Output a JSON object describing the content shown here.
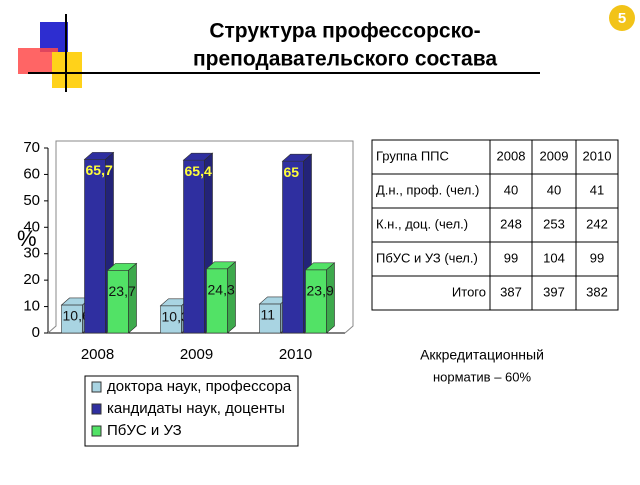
{
  "slide_number": "5",
  "title_lines": [
    "Структура профессорско-",
    "преподавательского состава"
  ],
  "chart_data": {
    "type": "bar3d",
    "y_label": "%",
    "categories": [
      "2008",
      "2009",
      "2010"
    ],
    "ylim": [
      0,
      70
    ],
    "yticks": [
      0,
      10,
      20,
      30,
      40,
      50,
      60,
      70
    ],
    "series": [
      {
        "name": "доктора наук, профессора",
        "color": "#a9d4e2",
        "values": [
          10.6,
          10.3,
          11
        ],
        "value_labels": [
          "10,6",
          "10,3",
          "11"
        ]
      },
      {
        "name": "кандидаты наук, доценты",
        "color": "#2f2fa0",
        "values": [
          65.7,
          65.4,
          65
        ],
        "value_labels": [
          "65,7",
          "65,4",
          "65"
        ]
      },
      {
        "name": "ПбУС и УЗ",
        "color": "#52e266",
        "values": [
          23.7,
          24.3,
          23.9
        ],
        "value_labels": [
          "23,7",
          "24,3",
          "23,9"
        ]
      }
    ]
  },
  "table": {
    "header": [
      "Группа ППС",
      "2008",
      "2009",
      "2010"
    ],
    "rows": [
      [
        "Д.н., проф. (чел.)",
        40,
        40,
        41
      ],
      [
        "К.н., доц. (чел.)",
        248,
        253,
        242
      ],
      [
        "ПбУС и УЗ (чел.)",
        99,
        104,
        99
      ],
      [
        "Итого",
        387,
        397,
        382
      ]
    ]
  },
  "note_lines": [
    "Аккредитационный",
    "норматив – 60%"
  ]
}
